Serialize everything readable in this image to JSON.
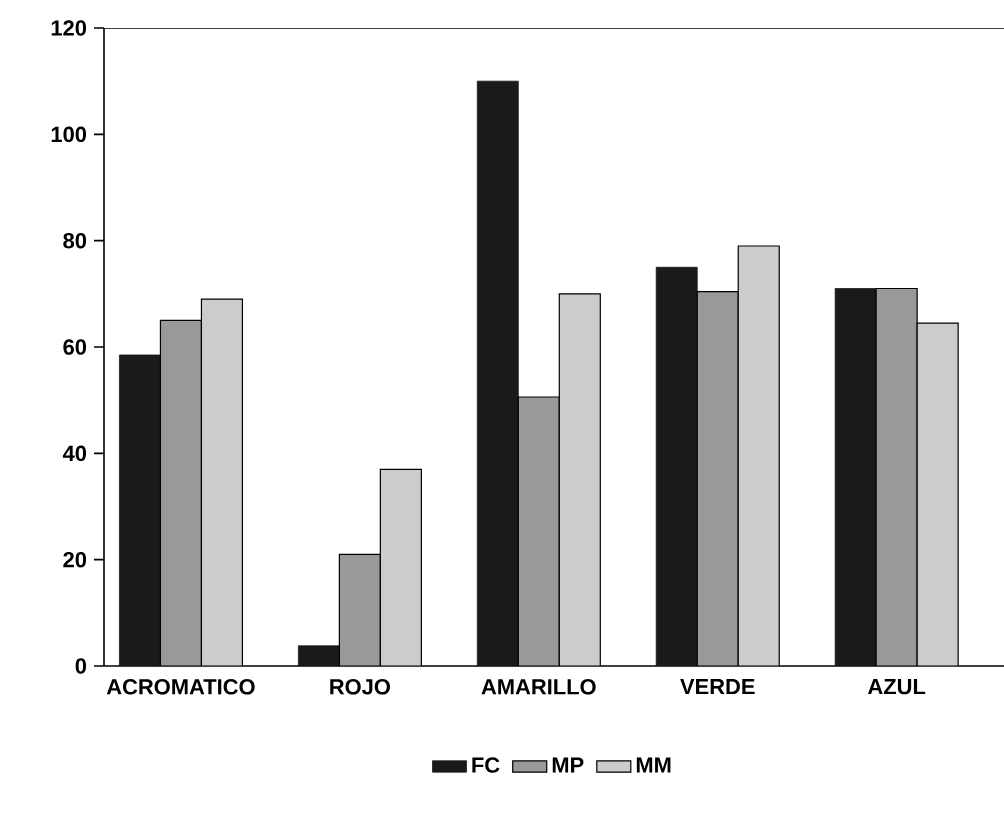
{
  "chart_data": {
    "type": "bar",
    "categories": [
      "ACROMATICO",
      "ROJO",
      "AMARILLO",
      "VERDE",
      "AZUL"
    ],
    "series": [
      {
        "name": "FC",
        "color": "#1a1a1a",
        "values": [
          58.5,
          3.8,
          110,
          75,
          71
        ]
      },
      {
        "name": "MP",
        "color": "#999999",
        "values": [
          65,
          21,
          50.6,
          70.4,
          71
        ]
      },
      {
        "name": "MM",
        "color": "#cccccc",
        "values": [
          69,
          37,
          70,
          79,
          64.5
        ]
      }
    ],
    "ylim": [
      0,
      120
    ],
    "yticks": [
      0,
      20,
      40,
      60,
      80,
      100,
      120
    ],
    "grid": false,
    "legend": "bottom"
  }
}
